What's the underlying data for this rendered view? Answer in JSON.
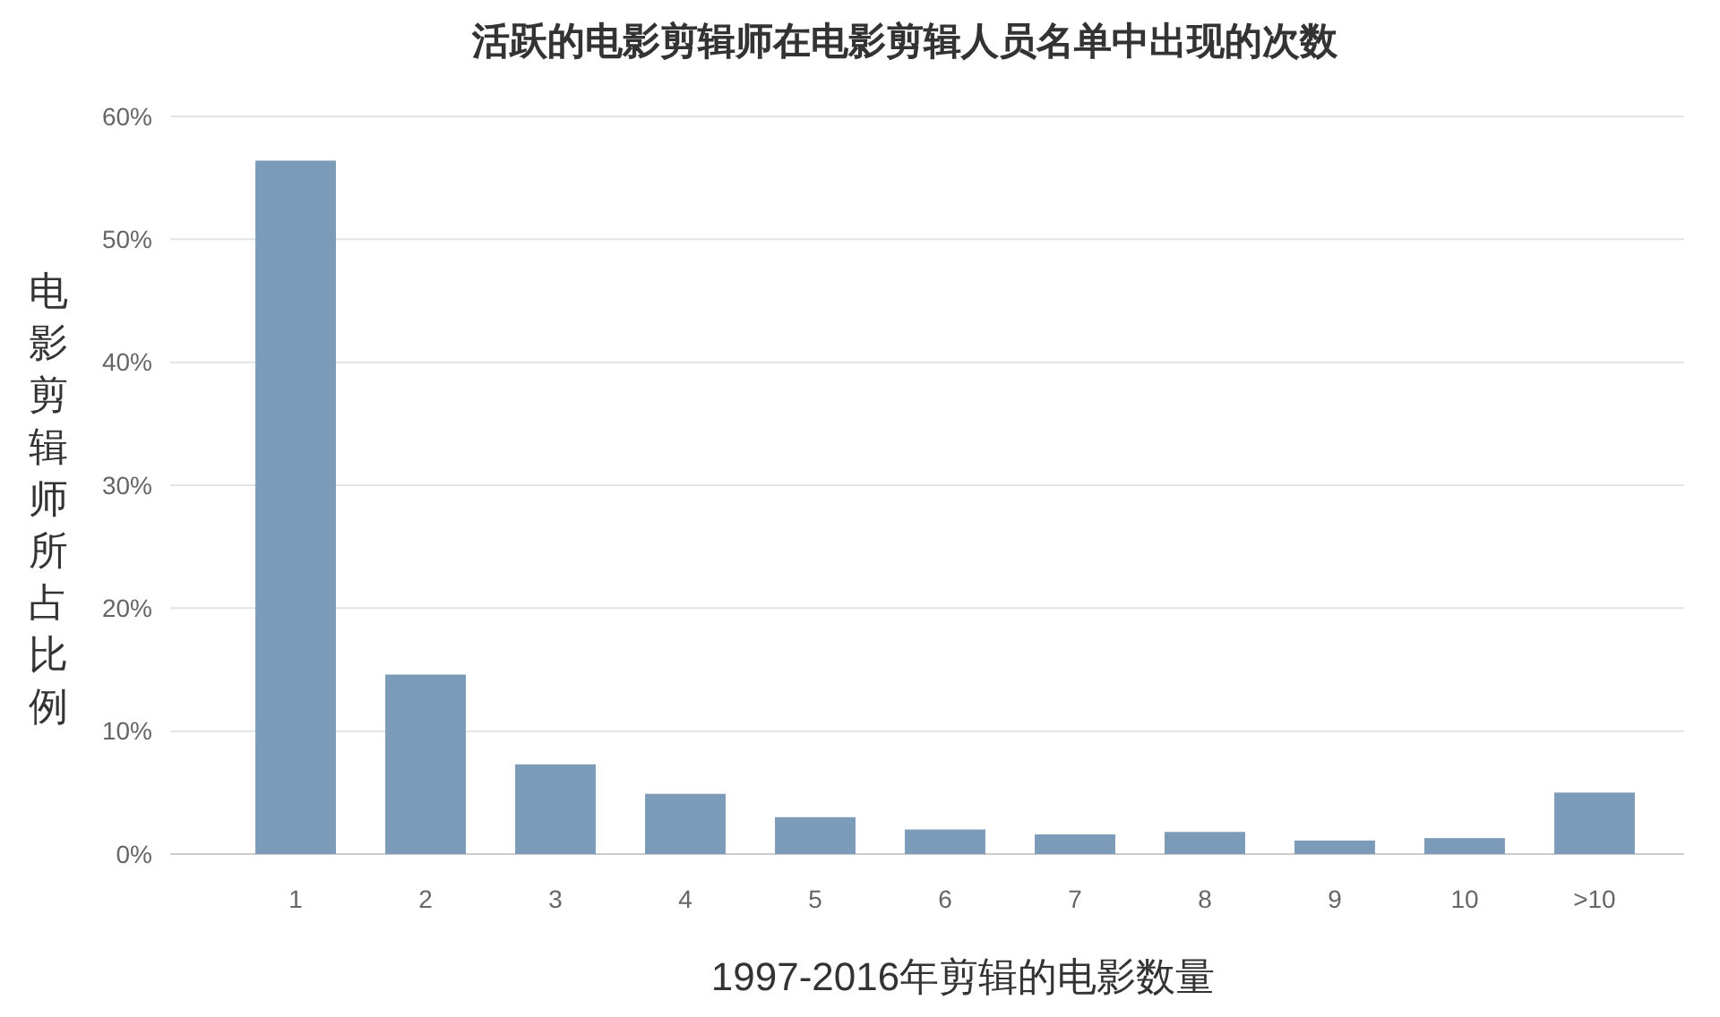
{
  "chart_data": {
    "type": "bar",
    "title": "活跃的电影剪辑师在电影剪辑人员名单中出现的次数",
    "xlabel": "1997-2016年剪辑的电影数量",
    "ylabel": "电影剪辑师所占比例",
    "categories": [
      "1",
      "2",
      "3",
      "4",
      "5",
      "6",
      "7",
      "8",
      "9",
      "10",
      ">10"
    ],
    "values": [
      56.4,
      14.6,
      7.3,
      4.9,
      3.0,
      2.0,
      1.6,
      1.8,
      1.1,
      1.3,
      5.0
    ],
    "color": "#7b9bb8",
    "ylim": [
      0,
      60
    ],
    "yticks": [
      {
        "value": 0,
        "label": "0%"
      },
      {
        "value": 10,
        "label": "10%"
      },
      {
        "value": 20,
        "label": "20%"
      },
      {
        "value": 30,
        "label": "30%"
      },
      {
        "value": 40,
        "label": "40%"
      },
      {
        "value": 50,
        "label": "50%"
      },
      {
        "value": 60,
        "label": "60%"
      }
    ],
    "grid": "y"
  }
}
